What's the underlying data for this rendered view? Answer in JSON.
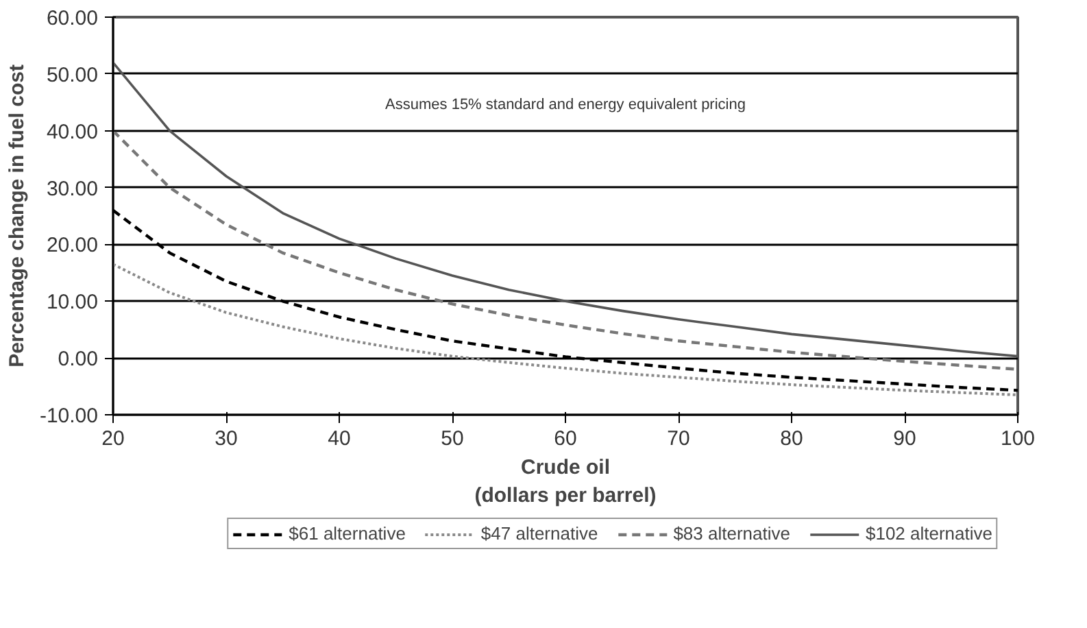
{
  "chart_data": {
    "type": "line",
    "xlabel": "Crude oil\n(dollars per barrel)",
    "ylabel": "Percentage change in fuel cost",
    "annotations": [
      "Assumes 15% standard and energy equivalent pricing"
    ],
    "x": [
      20,
      25,
      30,
      35,
      40,
      45,
      50,
      55,
      60,
      65,
      70,
      75,
      80,
      85,
      90,
      95,
      100
    ],
    "series": [
      {
        "name": "$61 alternative",
        "color": "#000000",
        "line_style": "dashed",
        "values": [
          26,
          18.5,
          13.5,
          10,
          7.2,
          5,
          3,
          1.6,
          0.2,
          -0.8,
          -1.8,
          -2.7,
          -3.4,
          -4,
          -4.6,
          -5.2,
          -5.7
        ]
      },
      {
        "name": "$47 alternative",
        "color": "#8a8a8a",
        "line_style": "dotted",
        "values": [
          16.5,
          11.5,
          8,
          5.5,
          3.4,
          1.7,
          0.3,
          -0.8,
          -1.8,
          -2.7,
          -3.4,
          -4.1,
          -4.7,
          -5.2,
          -5.7,
          -6.1,
          -6.5
        ]
      },
      {
        "name": "$83 alternative",
        "color": "#777777",
        "line_style": "dashed",
        "values": [
          40,
          30,
          23.5,
          18.5,
          15,
          12,
          9.5,
          7.5,
          5.8,
          4.3,
          3,
          2,
          1,
          0.2,
          -0.6,
          -1.3,
          -2
        ]
      },
      {
        "name": "$102 alternative",
        "color": "#555555",
        "line_style": "solid",
        "values": [
          52,
          40,
          32,
          25.5,
          21,
          17.5,
          14.5,
          12,
          10,
          8.3,
          6.8,
          5.5,
          4.2,
          3.2,
          2.2,
          1.2,
          0.3
        ]
      }
    ],
    "xlim": [
      20,
      100
    ],
    "xticks": [
      20,
      30,
      40,
      50,
      60,
      70,
      80,
      90,
      100
    ],
    "ylim": [
      -10,
      60
    ],
    "yticks": [
      {
        "value": -10,
        "label": "-10.00"
      },
      {
        "value": 0,
        "label": "0.00"
      },
      {
        "value": 10,
        "label": "10.00"
      },
      {
        "value": 20,
        "label": "20.00"
      },
      {
        "value": 30,
        "label": "30.00"
      },
      {
        "value": 40,
        "label": "40.00"
      },
      {
        "value": 50,
        "label": "50.00"
      },
      {
        "value": 60,
        "label": "60.00"
      }
    ],
    "grid": "y",
    "legend": "bottom",
    "marker": "none"
  }
}
